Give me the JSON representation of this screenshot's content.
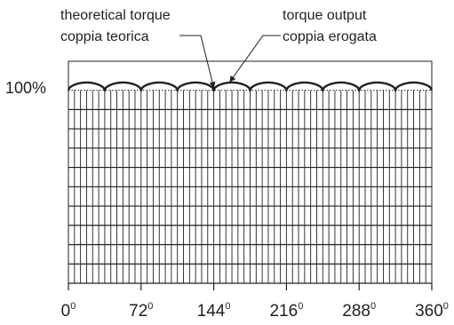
{
  "chart_data": {
    "type": "line",
    "title": "",
    "xlabel": "",
    "ylabel": "",
    "x_ticks": [
      {
        "value": 0,
        "label": "0"
      },
      {
        "value": 72,
        "label": "72"
      },
      {
        "value": 144,
        "label": "144"
      },
      {
        "value": 216,
        "label": "216"
      },
      {
        "value": 288,
        "label": "288"
      },
      {
        "value": 360,
        "label": "360"
      }
    ],
    "tick_suffix": "0",
    "xlim": [
      0,
      360
    ],
    "ylim": [
      0,
      115
    ],
    "y_tick": {
      "value": 100,
      "label": "100%"
    },
    "grid": true,
    "series": [
      {
        "name": "theoretical torque / coppia teorica",
        "style": "dotted",
        "values": "constant 100%"
      },
      {
        "name": "torque output / coppia erogata",
        "style": "solid",
        "values": "scalloped ripple: 10 arcs per 360°, peaks ≈104%, minima ≈100%"
      }
    ],
    "ripple": {
      "lobes": 10,
      "peak": 104,
      "min": 100
    },
    "annotations": [
      {
        "id": "theoretical",
        "line1": "theoretical torque",
        "line2": "coppia teorica",
        "points_to_x": 144,
        "points_to_y": 100
      },
      {
        "id": "output",
        "line1": "torque output",
        "line2": "coppia erogata",
        "points_to_x": 160,
        "points_to_y": 103
      }
    ],
    "colors": {
      "ink": "#231f20",
      "background": "#ffffff"
    }
  }
}
